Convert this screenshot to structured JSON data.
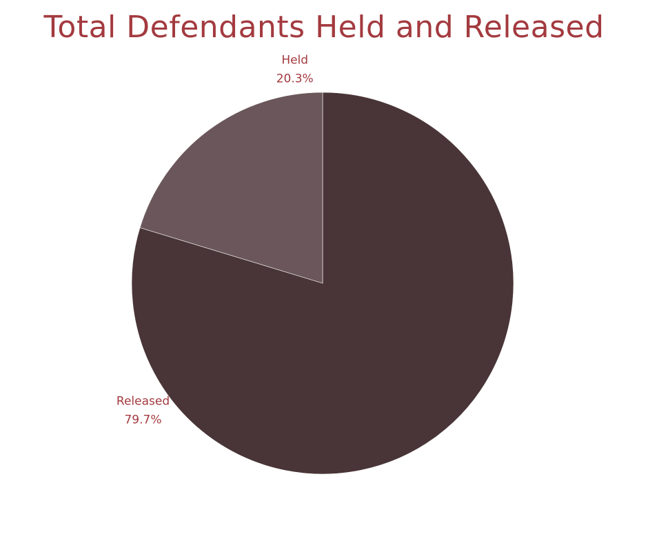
{
  "chart_data": {
    "type": "pie",
    "title": "Total Defendants Held and Released",
    "slices": [
      {
        "label": "Released",
        "percent_label": "79.7%",
        "value": 79.7,
        "color": "#493537"
      },
      {
        "label": "Held",
        "percent_label": "20.3%",
        "value": 20.3,
        "color": "#6b575b"
      }
    ],
    "legend": "none",
    "start_angle": "12 o'clock",
    "direction": "clockwise"
  },
  "colors": {
    "title": "#a33a3f",
    "labels": "#a33a3f",
    "background": "#ffffff"
  }
}
